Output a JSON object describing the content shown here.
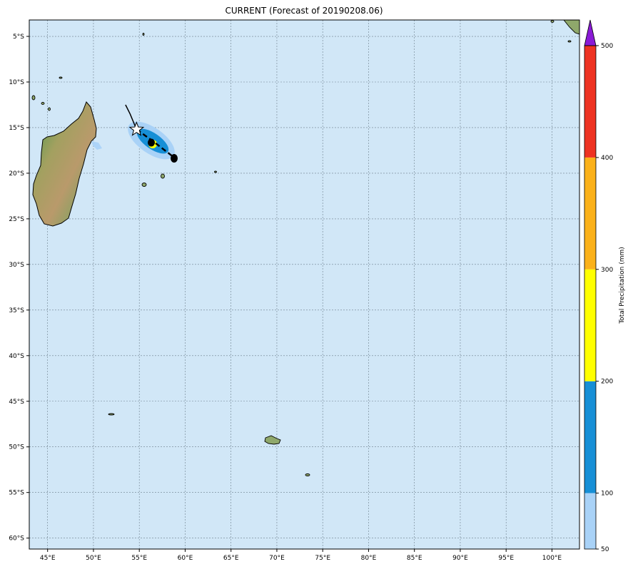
{
  "title": "CURRENT (Forecast of 20190208.06)",
  "map": {
    "ocean_color": "#d1e7f7",
    "grid": true,
    "lon_range": [
      43,
      103
    ],
    "lat_range": [
      -61.2,
      -3.2
    ],
    "lon_ticks": [
      {
        "value": 45,
        "label": "45°E"
      },
      {
        "value": 50,
        "label": "50°E"
      },
      {
        "value": 55,
        "label": "55°E"
      },
      {
        "value": 60,
        "label": "60°E"
      },
      {
        "value": 65,
        "label": "65°E"
      },
      {
        "value": 70,
        "label": "70°E"
      },
      {
        "value": 75,
        "label": "75°E"
      },
      {
        "value": 80,
        "label": "80°E"
      },
      {
        "value": 85,
        "label": "85°E"
      },
      {
        "value": 90,
        "label": "90°E"
      },
      {
        "value": 95,
        "label": "95°E"
      },
      {
        "value": 100,
        "label": "100°E"
      }
    ],
    "lat_ticks": [
      {
        "value": -5,
        "label": "5°S"
      },
      {
        "value": -10,
        "label": "10°S"
      },
      {
        "value": -15,
        "label": "15°S"
      },
      {
        "value": -20,
        "label": "20°S"
      },
      {
        "value": -25,
        "label": "25°S"
      },
      {
        "value": -30,
        "label": "30°S"
      },
      {
        "value": -35,
        "label": "35°S"
      },
      {
        "value": -40,
        "label": "40°S"
      },
      {
        "value": -45,
        "label": "45°S"
      },
      {
        "value": -50,
        "label": "50°S"
      },
      {
        "value": -55,
        "label": "55°S"
      },
      {
        "value": -60,
        "label": "60°S"
      }
    ],
    "storm_track_past": [
      [
        53.5,
        -12.5
      ],
      [
        54.0,
        -13.5
      ],
      [
        54.7,
        -15.2
      ]
    ],
    "storm_track_forecast": [
      [
        54.7,
        -15.2
      ],
      [
        56.5,
        -16.5
      ],
      [
        58.7,
        -18.2
      ]
    ],
    "storm_position": [
      54.7,
      -15.2
    ]
  },
  "colorbar": {
    "label": "Total Precipitation (mm)",
    "levels": [
      {
        "value": 50,
        "label": "50",
        "color": "#a9d2f7"
      },
      {
        "value": 100,
        "label": "100",
        "color": "#178fd6"
      },
      {
        "value": 200,
        "label": "200",
        "color": "#ffff00"
      },
      {
        "value": 300,
        "label": "300",
        "color": "#fbb11a"
      },
      {
        "value": 400,
        "label": "400",
        "color": "#ee3322"
      },
      {
        "value": 500,
        "label": "500",
        "color": "#8a1ad6"
      }
    ]
  }
}
